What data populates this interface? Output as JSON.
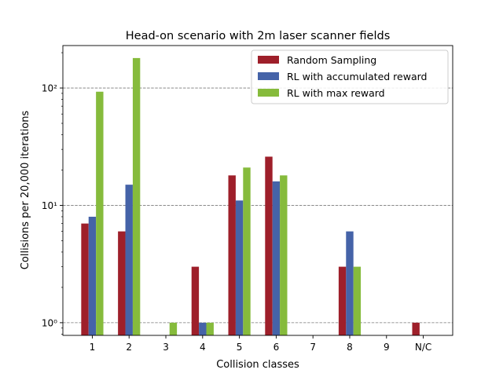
{
  "chart_data": {
    "type": "bar",
    "title": "Head-on scenario with 2m laser scanner fields",
    "xlabel": "Collision classes",
    "ylabel": "Collisions per 20,000 iterations",
    "yscale": "log",
    "ylim": [
      0.78,
      230
    ],
    "yticks": [
      1,
      10,
      100
    ],
    "ytick_labels": [
      "10⁰",
      "10¹",
      "10²"
    ],
    "grid": "horizontal dashed at major ticks",
    "legend_position": "top-right",
    "categories": [
      "1",
      "2",
      "3",
      "4",
      "5",
      "6",
      "7",
      "8",
      "9",
      "N/C"
    ],
    "series": [
      {
        "name": "Random Sampling",
        "color": "#9e1f2a",
        "values": [
          7,
          6,
          null,
          3,
          18,
          26,
          null,
          3,
          null,
          1
        ]
      },
      {
        "name": "RL with accumulated reward",
        "color": "#4563a8",
        "values": [
          8,
          15,
          null,
          1,
          11,
          16,
          null,
          6,
          null,
          null
        ]
      },
      {
        "name": "RL with max reward",
        "color": "#86bb3c",
        "values": [
          93,
          180,
          1,
          1,
          21,
          18,
          null,
          3,
          null,
          null
        ]
      }
    ]
  }
}
